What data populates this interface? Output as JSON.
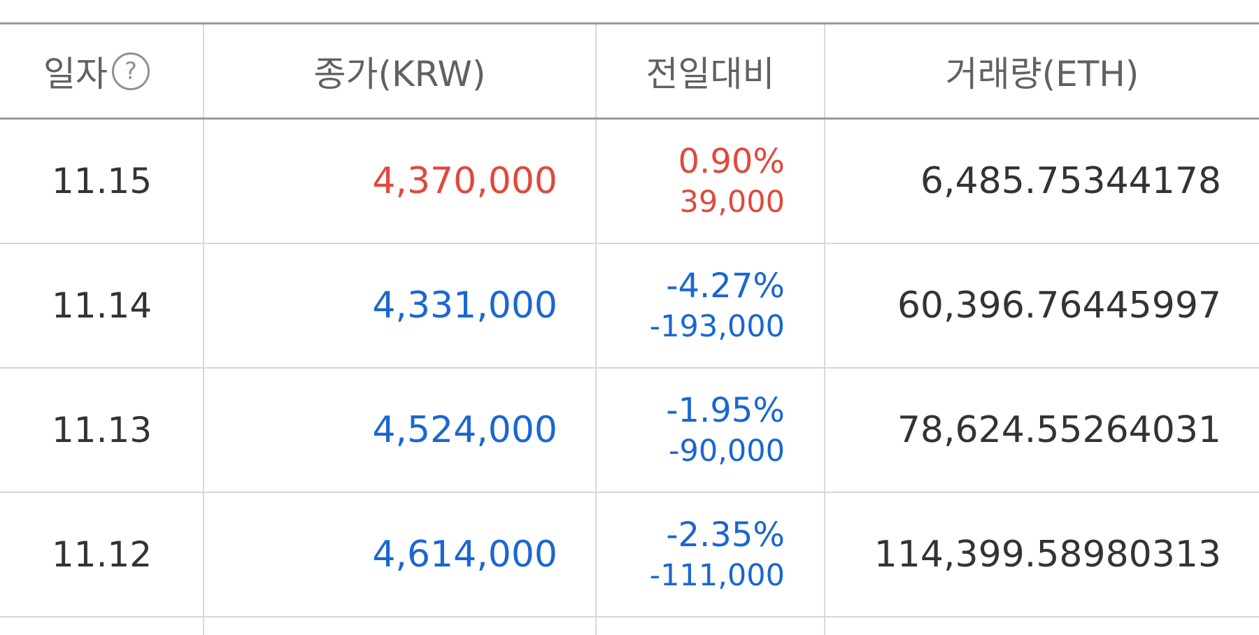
{
  "header": {
    "date_label": "일자",
    "help_icon": "?",
    "close_label": "종가(KRW)",
    "change_label": "전일대비",
    "volume_label": "거래량(ETH)"
  },
  "rows": [
    {
      "date": "11.15",
      "close": "4,370,000",
      "change_pct": "0.90%",
      "change_amt": "39,000",
      "volume": "6,485.75344178",
      "direction": "up"
    },
    {
      "date": "11.14",
      "close": "4,331,000",
      "change_pct": "-4.27%",
      "change_amt": "-193,000",
      "volume": "60,396.76445997",
      "direction": "down"
    },
    {
      "date": "11.13",
      "close": "4,524,000",
      "change_pct": "-1.95%",
      "change_amt": "-90,000",
      "volume": "78,624.55264031",
      "direction": "down"
    },
    {
      "date": "11.12",
      "close": "4,614,000",
      "change_pct": "-2.35%",
      "change_amt": "-111,000",
      "volume": "114,399.58980313",
      "direction": "down"
    }
  ],
  "colors": {
    "up": "#e1483d",
    "down": "#1967d2",
    "text": "#333333",
    "header_text": "#616161"
  }
}
